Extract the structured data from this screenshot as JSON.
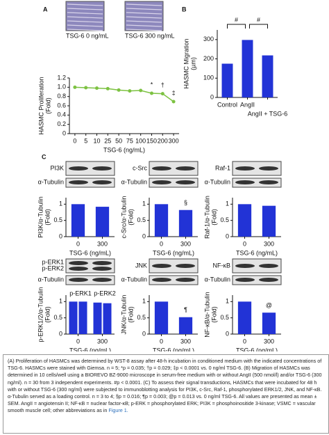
{
  "chart_data": [
    {
      "type": "line",
      "panel": "A",
      "images": [
        "TSG-6  0 ng/mL",
        "TSG-6  300 ng/mL"
      ],
      "categories": [
        "0",
        "5",
        "10",
        "25",
        "50",
        "75",
        "100",
        "150",
        "200",
        "300"
      ],
      "values": [
        1.0,
        0.99,
        0.98,
        0.97,
        0.94,
        0.92,
        0.93,
        0.87,
        0.86,
        0.69
      ],
      "point_labels": [
        null,
        null,
        null,
        null,
        null,
        null,
        null,
        "*",
        "†",
        "‡"
      ],
      "color": "#7dc242",
      "label_color": "#e8322e",
      "ylim": [
        0,
        1.2
      ],
      "yticks": [
        0,
        0.2,
        0.4,
        0.6,
        0.8,
        {
          "value": 1,
          "label": "1.0"
        },
        1.2
      ],
      "ylabel": [
        "HASMC Proliferation",
        "(Fold)"
      ],
      "xlabel": "TSG-6 (ng/mL)"
    },
    {
      "type": "bar",
      "panel": "B",
      "categories": [
        "Control",
        "AngII",
        "AngII + TSG-6"
      ],
      "values": [
        175,
        298,
        218
      ],
      "comparisons": [
        "#",
        "#"
      ],
      "color": "#2233d6",
      "label_color": "#e8322e",
      "ylim": [
        0,
        350
      ],
      "yticks": [
        0,
        100,
        200,
        300
      ],
      "ylabel": [
        "HASMC Migration",
        "(µm)"
      ]
    },
    {
      "type": "bar",
      "panel": "C",
      "blot_labels": [
        "PI3K",
        "α-Tubulin"
      ],
      "categories": [
        "0",
        "300"
      ],
      "values": [
        1,
        0.92
      ],
      "markers": [
        null,
        null
      ],
      "color": "#2233d6",
      "label_color": "#e8322e",
      "ylim": [
        0,
        1.2
      ],
      "yticks": [
        0,
        0.5,
        1
      ],
      "ylabel": [
        "PI3K/α-Tubulin",
        "(Fold)"
      ],
      "xlabel": "TSG-6 (ng/mL)"
    },
    {
      "type": "bar",
      "blot_labels": [
        "c-Src",
        "α-Tubulin"
      ],
      "categories": [
        "0",
        "300"
      ],
      "values": [
        1,
        0.82
      ],
      "markers": [
        null,
        "§"
      ],
      "color": "#2233d6",
      "label_color": "#e8322e",
      "ylim": [
        0,
        1.2
      ],
      "yticks": [
        0,
        0.5,
        1
      ],
      "ylabel": [
        "c-Src/α-Tubulin",
        "(Fold)"
      ],
      "xlabel": "TSG-6 (ng/mL)"
    },
    {
      "type": "bar",
      "blot_labels": [
        "Raf-1",
        "α-Tubulin"
      ],
      "categories": [
        "0",
        "300"
      ],
      "values": [
        1,
        0.95
      ],
      "markers": [
        null,
        null
      ],
      "color": "#2233d6",
      "label_color": "#e8322e",
      "ylim": [
        0,
        1.2
      ],
      "yticks": [
        0,
        0.5,
        1
      ],
      "ylabel": [
        "Raf-1/α-Tubulin",
        "(Fold)"
      ],
      "xlabel": "TSG-6 (ng/mL)"
    },
    {
      "type": "bar",
      "blot_labels": [
        "p-ERK1",
        "p-ERK2",
        "α-Tubulin"
      ],
      "categories": [
        "0",
        "300"
      ],
      "series": [
        {
          "name": "p-ERK1",
          "color": "#2233d6",
          "values": [
            1,
            0.97
          ]
        },
        {
          "name": "p-ERK2",
          "color": "#2233d6",
          "values": [
            1,
            0.95
          ]
        }
      ],
      "ylim": [
        0,
        1.2
      ],
      "yticks": [
        0,
        0.5,
        1
      ],
      "ylabel": [
        "p-ERK1/2/α-Tubulin",
        "(Fold)"
      ],
      "xlabel": "TSG-6 (ng/mL)"
    },
    {
      "type": "bar",
      "blot_labels": [
        "JNK",
        "α-Tubulin"
      ],
      "categories": [
        "0",
        "300"
      ],
      "values": [
        1,
        0.52
      ],
      "markers": [
        null,
        "¶"
      ],
      "color": "#2233d6",
      "label_color": "#e8322e",
      "ylim": [
        0,
        1.2
      ],
      "yticks": [
        0,
        0.5,
        1
      ],
      "ylabel": [
        "JNK/α-Tubulin",
        "(Fold)"
      ],
      "xlabel": "TSG-6 (ng/mL)"
    },
    {
      "type": "bar",
      "blot_labels": [
        "NF-κB",
        "α-Tubulin"
      ],
      "categories": [
        "0",
        "300"
      ],
      "values": [
        1,
        0.66
      ],
      "markers": [
        null,
        "@"
      ],
      "color": "#2233d6",
      "label_color": "#e8322e",
      "ylim": [
        0,
        1.2
      ],
      "yticks": [
        0,
        0.5,
        1
      ],
      "ylabel": [
        "NF-κB/α-Tubulin",
        "(Fold)"
      ],
      "xlabel": "TSG-6 (ng/mL)"
    }
  ],
  "caption": {
    "text": "(A) Proliferation of HASMCs was determined by WST-8 assay after 48-h incubation in conditioned medium with the indicated concentrations of TSG-6. HASMCs were stained with Giemsa. n = 5; *p = 0.035; †p = 0.029; ‡p < 0.0001 vs. 0 ng/ml TSG-6. (B) Migration of HASMCs was determined in 10 cells/well using a BIOREVO BZ-9000 microscope in serum-free medium with or without AngII (500 nmol/l) and/or TSG-6 (300 ng/ml). n = 30 from 3 independent experiments. #p < 0.0001. (C) To assess their signal transductions, HASMCs that were incubated for 48 h with or without TSG-6 (300 ng/ml) were subjected to immunoblotting analysis for PI3K, c-Src, Raf-1, phosphorylated ERK1/2, JNK, and NF-κB. α-Tubulin served as a loading control. n = 3 to 4; §p = 0.016; ¶p = 0.003; @p = 0.013 vs. 0 ng/ml TSG-6. All values are presented as mean ± SEM. AngII = angiotensin II; NF-κB = nuclear factor-κB; p-ERK = phosphorylated ERK; PI3K = phosphoinositide 3-kinase; VSMC = vascular smooth muscle cell; other abbreviations as in",
    "link": "Figure 1."
  }
}
